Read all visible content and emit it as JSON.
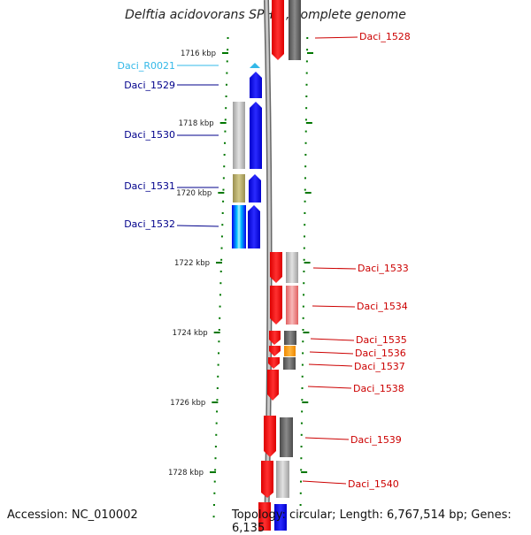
{
  "title": "Delftia acidovorans SPH-1, complete genome",
  "footer": {
    "accession": "Accession: NC_010002",
    "info": "Topology: circular; Length: 6,767,514 bp; Genes: 6,135"
  },
  "scale": {
    "unit": "kbp",
    "ticks": [
      {
        "label": "1716 kbp",
        "value": 1716
      },
      {
        "label": "1718 kbp",
        "value": 1718
      },
      {
        "label": "1720 kbp",
        "value": 1720
      },
      {
        "label": "1722 kbp",
        "value": 1722
      },
      {
        "label": "1724 kbp",
        "value": 1724
      },
      {
        "label": "1726 kbp",
        "value": 1726
      },
      {
        "label": "1728 kbp",
        "value": 1728
      }
    ]
  },
  "colors": {
    "forward": "#ff0000",
    "reverse": "#0000ff",
    "rna": "#33b8e8",
    "label_reverse": "#00008b",
    "label_forward": "#cc0000",
    "label_rna": "#33b8e8",
    "tick": "#007700"
  },
  "genes_reverse": [
    {
      "label": "Daci_R0021",
      "type": "rna"
    },
    {
      "label": "Daci_1529",
      "type": "cds"
    },
    {
      "label": "Daci_1530",
      "type": "cds"
    },
    {
      "label": "Daci_1531",
      "type": "cds"
    },
    {
      "label": "Daci_1532",
      "type": "cds"
    }
  ],
  "genes_forward": [
    {
      "label": "Daci_1528"
    },
    {
      "label": "Daci_1533"
    },
    {
      "label": "Daci_1534"
    },
    {
      "label": "Daci_1535"
    },
    {
      "label": "Daci_1536"
    },
    {
      "label": "Daci_1537"
    },
    {
      "label": "Daci_1538"
    },
    {
      "label": "Daci_1539"
    },
    {
      "label": "Daci_1540"
    }
  ]
}
